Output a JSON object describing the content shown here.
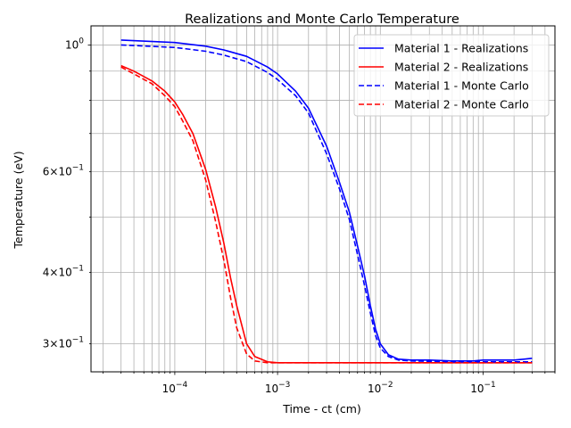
{
  "chart_data": {
    "type": "line",
    "title": "Realizations and Monte Carlo Temperature",
    "xlabel": "Time - ct (cm)",
    "ylabel": "Temperature (eV)",
    "xscale": "log",
    "yscale": "log",
    "xlim": [
      1.53e-05,
      0.5
    ],
    "ylim": [
      0.268,
      1.08
    ],
    "grid": true,
    "legend_position": "upper right",
    "x_ticks": [
      {
        "value": 0.0001,
        "base": "10",
        "exp": "−4"
      },
      {
        "value": 0.001,
        "base": "10",
        "exp": "−3"
      },
      {
        "value": 0.01,
        "base": "10",
        "exp": "−2"
      },
      {
        "value": 0.1,
        "base": "10",
        "exp": "−1"
      }
    ],
    "y_ticks": [
      {
        "value": 1.0,
        "base": "10",
        "exp": "0",
        "mantissa": ""
      },
      {
        "value": 0.6,
        "base": "10",
        "exp": "−1",
        "mantissa": "6×"
      },
      {
        "value": 0.4,
        "base": "10",
        "exp": "−1",
        "mantissa": "4×"
      },
      {
        "value": 0.3,
        "base": "10",
        "exp": "−1",
        "mantissa": "3×"
      }
    ],
    "series": [
      {
        "name": "Material 1 - Realizations",
        "color": "#0000ff",
        "style": "solid",
        "points": [
          [
            3e-05,
            1.02
          ],
          [
            0.0001,
            1.01
          ],
          [
            0.0002,
            0.995
          ],
          [
            0.0003,
            0.98
          ],
          [
            0.0005,
            0.955
          ],
          [
            0.0008,
            0.915
          ],
          [
            0.001,
            0.89
          ],
          [
            0.0015,
            0.83
          ],
          [
            0.002,
            0.775
          ],
          [
            0.003,
            0.665
          ],
          [
            0.004,
            0.575
          ],
          [
            0.005,
            0.51
          ],
          [
            0.006,
            0.445
          ],
          [
            0.007,
            0.395
          ],
          [
            0.008,
            0.35
          ],
          [
            0.009,
            0.318
          ],
          [
            0.01,
            0.3
          ],
          [
            0.012,
            0.287
          ],
          [
            0.015,
            0.282
          ],
          [
            0.02,
            0.281
          ],
          [
            0.03,
            0.281
          ],
          [
            0.05,
            0.28
          ],
          [
            0.08,
            0.28
          ],
          [
            0.1,
            0.281
          ],
          [
            0.15,
            0.281
          ],
          [
            0.2,
            0.281
          ],
          [
            0.25,
            0.282
          ],
          [
            0.3,
            0.283
          ]
        ]
      },
      {
        "name": "Material 2 - Realizations",
        "color": "#ff0000",
        "style": "solid",
        "points": [
          [
            3e-05,
            0.92
          ],
          [
            4e-05,
            0.9
          ],
          [
            6e-05,
            0.865
          ],
          [
            8e-05,
            0.83
          ],
          [
            0.0001,
            0.795
          ],
          [
            0.00012,
            0.755
          ],
          [
            0.00015,
            0.7
          ],
          [
            0.0002,
            0.605
          ],
          [
            0.00025,
            0.52
          ],
          [
            0.0003,
            0.45
          ],
          [
            0.00035,
            0.39
          ],
          [
            0.0004,
            0.35
          ],
          [
            0.0005,
            0.3
          ],
          [
            0.0006,
            0.285
          ],
          [
            0.0008,
            0.279
          ],
          [
            0.001,
            0.278
          ],
          [
            0.003,
            0.278
          ],
          [
            0.01,
            0.278
          ],
          [
            0.03,
            0.278
          ],
          [
            0.1,
            0.278
          ],
          [
            0.3,
            0.278
          ]
        ]
      },
      {
        "name": "Material 1 - Monte Carlo",
        "color": "#0000ff",
        "style": "dashed",
        "points": [
          [
            3e-05,
            1.0
          ],
          [
            0.0001,
            0.99
          ],
          [
            0.0002,
            0.975
          ],
          [
            0.0003,
            0.96
          ],
          [
            0.0005,
            0.935
          ],
          [
            0.0008,
            0.895
          ],
          [
            0.001,
            0.87
          ],
          [
            0.0015,
            0.815
          ],
          [
            0.002,
            0.76
          ],
          [
            0.003,
            0.645
          ],
          [
            0.004,
            0.56
          ],
          [
            0.005,
            0.495
          ],
          [
            0.006,
            0.43
          ],
          [
            0.007,
            0.38
          ],
          [
            0.008,
            0.34
          ],
          [
            0.009,
            0.31
          ],
          [
            0.01,
            0.295
          ],
          [
            0.012,
            0.285
          ],
          [
            0.015,
            0.281
          ],
          [
            0.02,
            0.28
          ],
          [
            0.05,
            0.279
          ],
          [
            0.1,
            0.279
          ],
          [
            0.3,
            0.279
          ]
        ]
      },
      {
        "name": "Material 2 - Monte Carlo",
        "color": "#ff0000",
        "style": "dashed",
        "points": [
          [
            3e-05,
            0.915
          ],
          [
            4e-05,
            0.89
          ],
          [
            6e-05,
            0.855
          ],
          [
            8e-05,
            0.815
          ],
          [
            0.0001,
            0.78
          ],
          [
            0.00012,
            0.735
          ],
          [
            0.00015,
            0.68
          ],
          [
            0.0002,
            0.58
          ],
          [
            0.00025,
            0.49
          ],
          [
            0.0003,
            0.42
          ],
          [
            0.00035,
            0.36
          ],
          [
            0.0004,
            0.32
          ],
          [
            0.0005,
            0.288
          ],
          [
            0.0006,
            0.28
          ],
          [
            0.0008,
            0.278
          ],
          [
            0.001,
            0.278
          ],
          [
            0.01,
            0.278
          ],
          [
            0.1,
            0.278
          ],
          [
            0.3,
            0.278
          ]
        ]
      }
    ]
  }
}
